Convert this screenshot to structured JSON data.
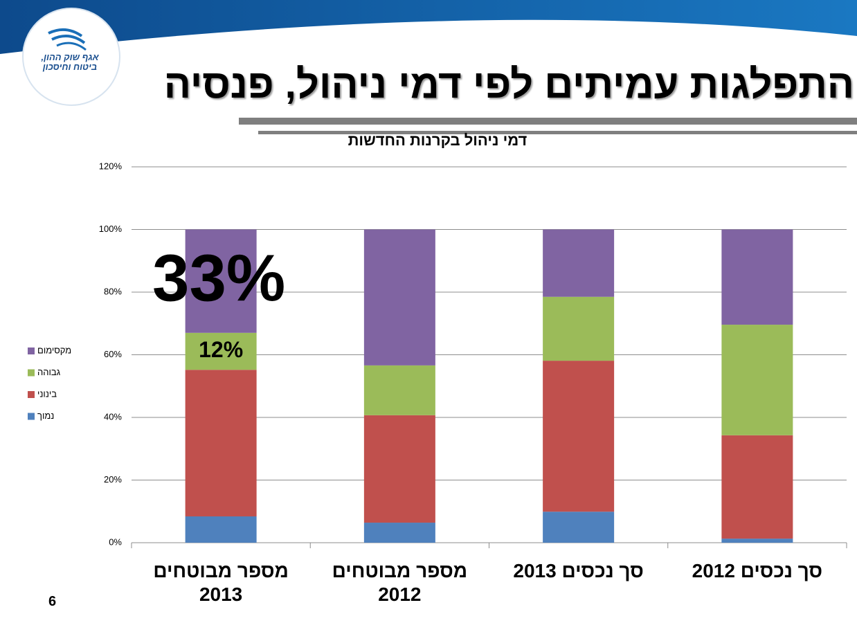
{
  "title": "התפלגות עמיתים לפי דמי ניהול, פנסיה",
  "logo_text": [
    "אגף שוק ההון,",
    "ביטוח וחיסכון"
  ],
  "page_number": "6",
  "chart_data": {
    "type": "stacked_bar",
    "title": "דמי ניהול בקרנות החדשות",
    "categories": [
      "מספר מבוטחים 2013",
      "מספר מבוטחים 2012",
      "סך נכסים 2013",
      "סך נכסים 2012"
    ],
    "series": [
      {
        "name": "נמוך",
        "color": "#4f81bd",
        "values": [
          8.4,
          6.4,
          9.9,
          1.3
        ]
      },
      {
        "name": "בינוני",
        "color": "#c0504d",
        "values": [
          46.8,
          34.3,
          48.2,
          33.0
        ]
      },
      {
        "name": "גבוהה",
        "color": "#9bbb59",
        "values": [
          11.8,
          15.9,
          20.4,
          35.3
        ],
        "value_labels": [
          "12%",
          null,
          null,
          null
        ]
      },
      {
        "name": "מקסימום",
        "color": "#8064a2",
        "values": [
          33.0,
          43.4,
          21.5,
          30.4
        ],
        "value_labels": [
          "33%",
          null,
          null,
          null
        ]
      }
    ],
    "ylim": [
      0,
      120
    ],
    "yticks": [
      {
        "value": 0,
        "label": "0%"
      },
      {
        "value": 20,
        "label": "20%"
      },
      {
        "value": 40,
        "label": "40%"
      },
      {
        "value": 60,
        "label": "60%"
      },
      {
        "value": 80,
        "label": "80%"
      },
      {
        "value": 100,
        "label": "100%"
      },
      {
        "value": 120,
        "label": "120%"
      }
    ],
    "grid": true,
    "legend": "left"
  }
}
